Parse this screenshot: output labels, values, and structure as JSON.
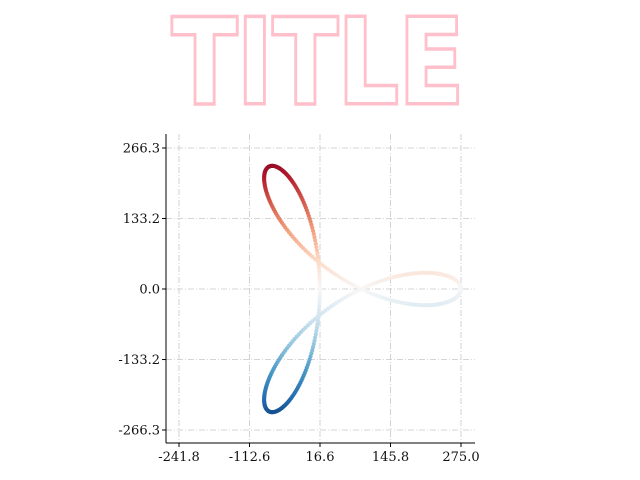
{
  "title": {
    "text": "TITLE",
    "color": "#ffc0cb"
  },
  "chart_data": {
    "type": "scatter",
    "title": "TITLE",
    "xlabel": "",
    "ylabel": "",
    "xlim": [
      -241.8,
      275.0
    ],
    "ylim": [
      -266.3,
      266.3
    ],
    "x_ticks": [
      -241.8,
      -112.6,
      16.6,
      145.8,
      275.0
    ],
    "x_tick_labels": [
      "-241.8",
      "-112.6",
      "16.6",
      "145.8",
      "275.0"
    ],
    "y_ticks": [
      266.3,
      133.2,
      0.0,
      -133.2,
      -266.3
    ],
    "y_tick_labels": [
      "266.3",
      "133.2",
      "0.0",
      "-133.2",
      "-266.3"
    ],
    "grid": true,
    "colormap": "RdBu (dark red at top, dark blue at bottom)",
    "point_count": 360,
    "curve": {
      "description": "three-lobed closed parametric curve (trefoil-like rose), color mapped to y value",
      "x_center": 39.8,
      "x_samples": {
        "t": [
          0,
          60,
          120,
          180,
          240,
          300
        ],
        "x": [
          275.0,
          154.3,
          -63.1,
          -241.8,
          -63.1,
          154.3
        ]
      },
      "y_max": 266.3,
      "y_min": -266.3
    }
  },
  "colors": {
    "high": "#67001f",
    "mid": "#f7f7f7",
    "low": "#053061",
    "grid": "#c8c8c8",
    "axis": "#000000"
  }
}
